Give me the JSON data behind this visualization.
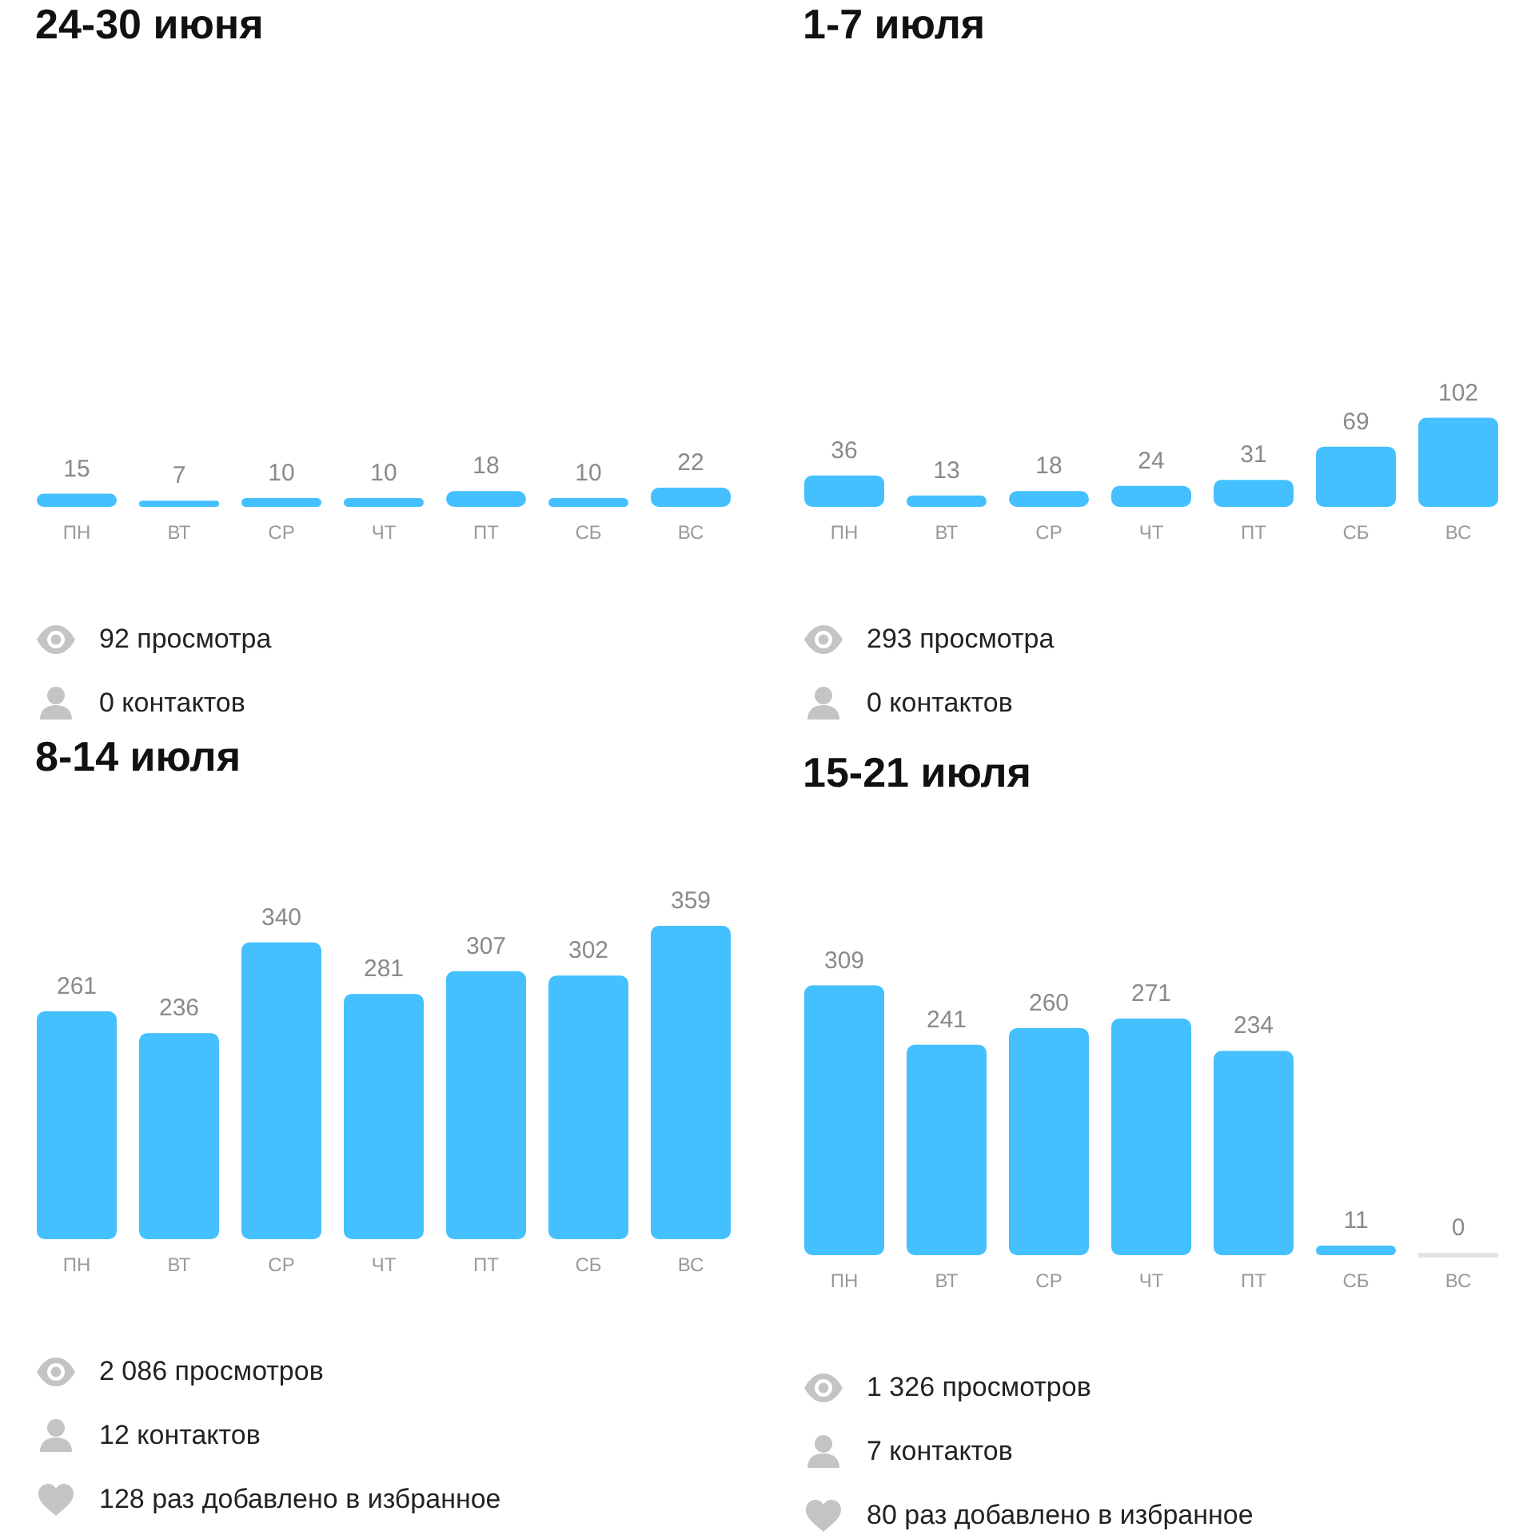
{
  "chart_data": [
    {
      "type": "bar",
      "title": "24-30 июня",
      "categories": [
        "ПН",
        "ВТ",
        "СР",
        "ЧТ",
        "ПТ",
        "СБ",
        "ВС"
      ],
      "values": [
        15,
        7,
        10,
        10,
        18,
        10,
        22
      ],
      "color": "#45c0ff",
      "data_labels": true,
      "annotations": [
        "92 просмотра",
        "0 контактов"
      ]
    },
    {
      "type": "bar",
      "title": "1-7 июля",
      "categories": [
        "ПН",
        "ВТ",
        "СР",
        "ЧТ",
        "ПТ",
        "СБ",
        "ВС"
      ],
      "values": [
        36,
        13,
        18,
        24,
        31,
        69,
        102
      ],
      "color": "#45c0ff",
      "data_labels": true,
      "annotations": [
        "293 просмотра",
        "0 контактов"
      ]
    },
    {
      "type": "bar",
      "title": "8-14 июля",
      "categories": [
        "ПН",
        "ВТ",
        "СР",
        "ЧТ",
        "ПТ",
        "СБ",
        "ВС"
      ],
      "values": [
        261,
        236,
        340,
        281,
        307,
        302,
        359
      ],
      "color": "#45c0ff",
      "data_labels": true,
      "annotations": [
        "2 086 просмотров",
        "12 контактов",
        "128 раз добавлено в избранное"
      ]
    },
    {
      "type": "bar",
      "title": "15-21 июля",
      "categories": [
        "ПН",
        "ВТ",
        "СР",
        "ЧТ",
        "ПТ",
        "СБ",
        "ВС"
      ],
      "values": [
        309,
        241,
        260,
        271,
        234,
        11,
        0
      ],
      "colors": [
        "#45c0ff",
        "#45c0ff",
        "#45c0ff",
        "#45c0ff",
        "#45c0ff",
        "#45c0ff",
        "#e2e2e2"
      ],
      "data_labels": true,
      "annotations": [
        "1 326 просмотров",
        "7 контактов",
        "80 раз добавлено в избранное"
      ]
    }
  ]
}
